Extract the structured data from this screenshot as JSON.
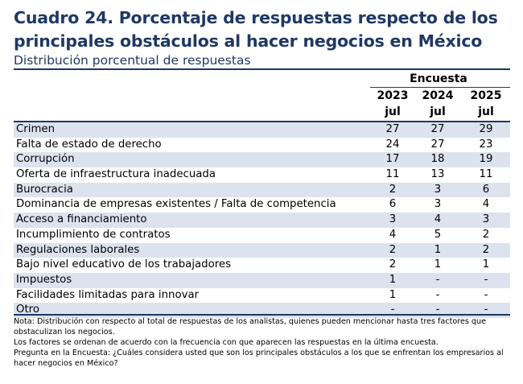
{
  "title": "Cuadro 24. Porcentaje de respuestas respecto de los principales obstáculos al hacer negocios en México",
  "subtitle": "Distribución porcentual de respuestas",
  "header": {
    "group": "Encuesta",
    "columns": [
      {
        "year": "2023",
        "month": "jul"
      },
      {
        "year": "2024",
        "month": "jul"
      },
      {
        "year": "2025",
        "month": "jul"
      }
    ]
  },
  "rows": [
    {
      "label": "Crimen",
      "values": [
        "27",
        "27",
        "29"
      ]
    },
    {
      "label": "Falta de estado de derecho",
      "values": [
        "24",
        "27",
        "23"
      ]
    },
    {
      "label": "Corrupción",
      "values": [
        "17",
        "18",
        "19"
      ]
    },
    {
      "label": "Oferta de infraestructura inadecuada",
      "values": [
        "11",
        "13",
        "11"
      ]
    },
    {
      "label": "Burocracia",
      "values": [
        "2",
        "3",
        "6"
      ]
    },
    {
      "label": "Dominancia de empresas existentes / Falta de competencia",
      "values": [
        "6",
        "3",
        "4"
      ]
    },
    {
      "label": "Acceso a financiamiento",
      "values": [
        "3",
        "4",
        "3"
      ]
    },
    {
      "label": "Incumplimiento de contratos",
      "values": [
        "4",
        "5",
        "2"
      ]
    },
    {
      "label": "Regulaciones laborales",
      "values": [
        "2",
        "1",
        "2"
      ]
    },
    {
      "label": "Bajo nivel educativo de los trabajadores",
      "values": [
        "2",
        "1",
        "1"
      ]
    },
    {
      "label": "Impuestos",
      "values": [
        "1",
        "-",
        "-"
      ]
    },
    {
      "label": "Facilidades limitadas para innovar",
      "values": [
        "1",
        "-",
        "-"
      ]
    },
    {
      "label": "Otro",
      "values": [
        "-",
        "-",
        "-"
      ]
    }
  ],
  "notes": [
    "Nota: Distribución con respecto al total de respuestas de los analistas, quienes pueden mencionar hasta tres factores que obstaculizan los negocios.",
    "Los factores  se ordenan de acuerdo con la frecuencia con que aparecen las respuestas en la última encuesta.",
    "Pregunta en la Encuesta: ¿Cuáles considera usted que son los principales obstáculos a los que se enfrentan los empresarios al hacer negocios en México?"
  ],
  "colors": {
    "title": "#1f3864",
    "rule": "#1f3864",
    "row_shade": "#dce3ef"
  }
}
